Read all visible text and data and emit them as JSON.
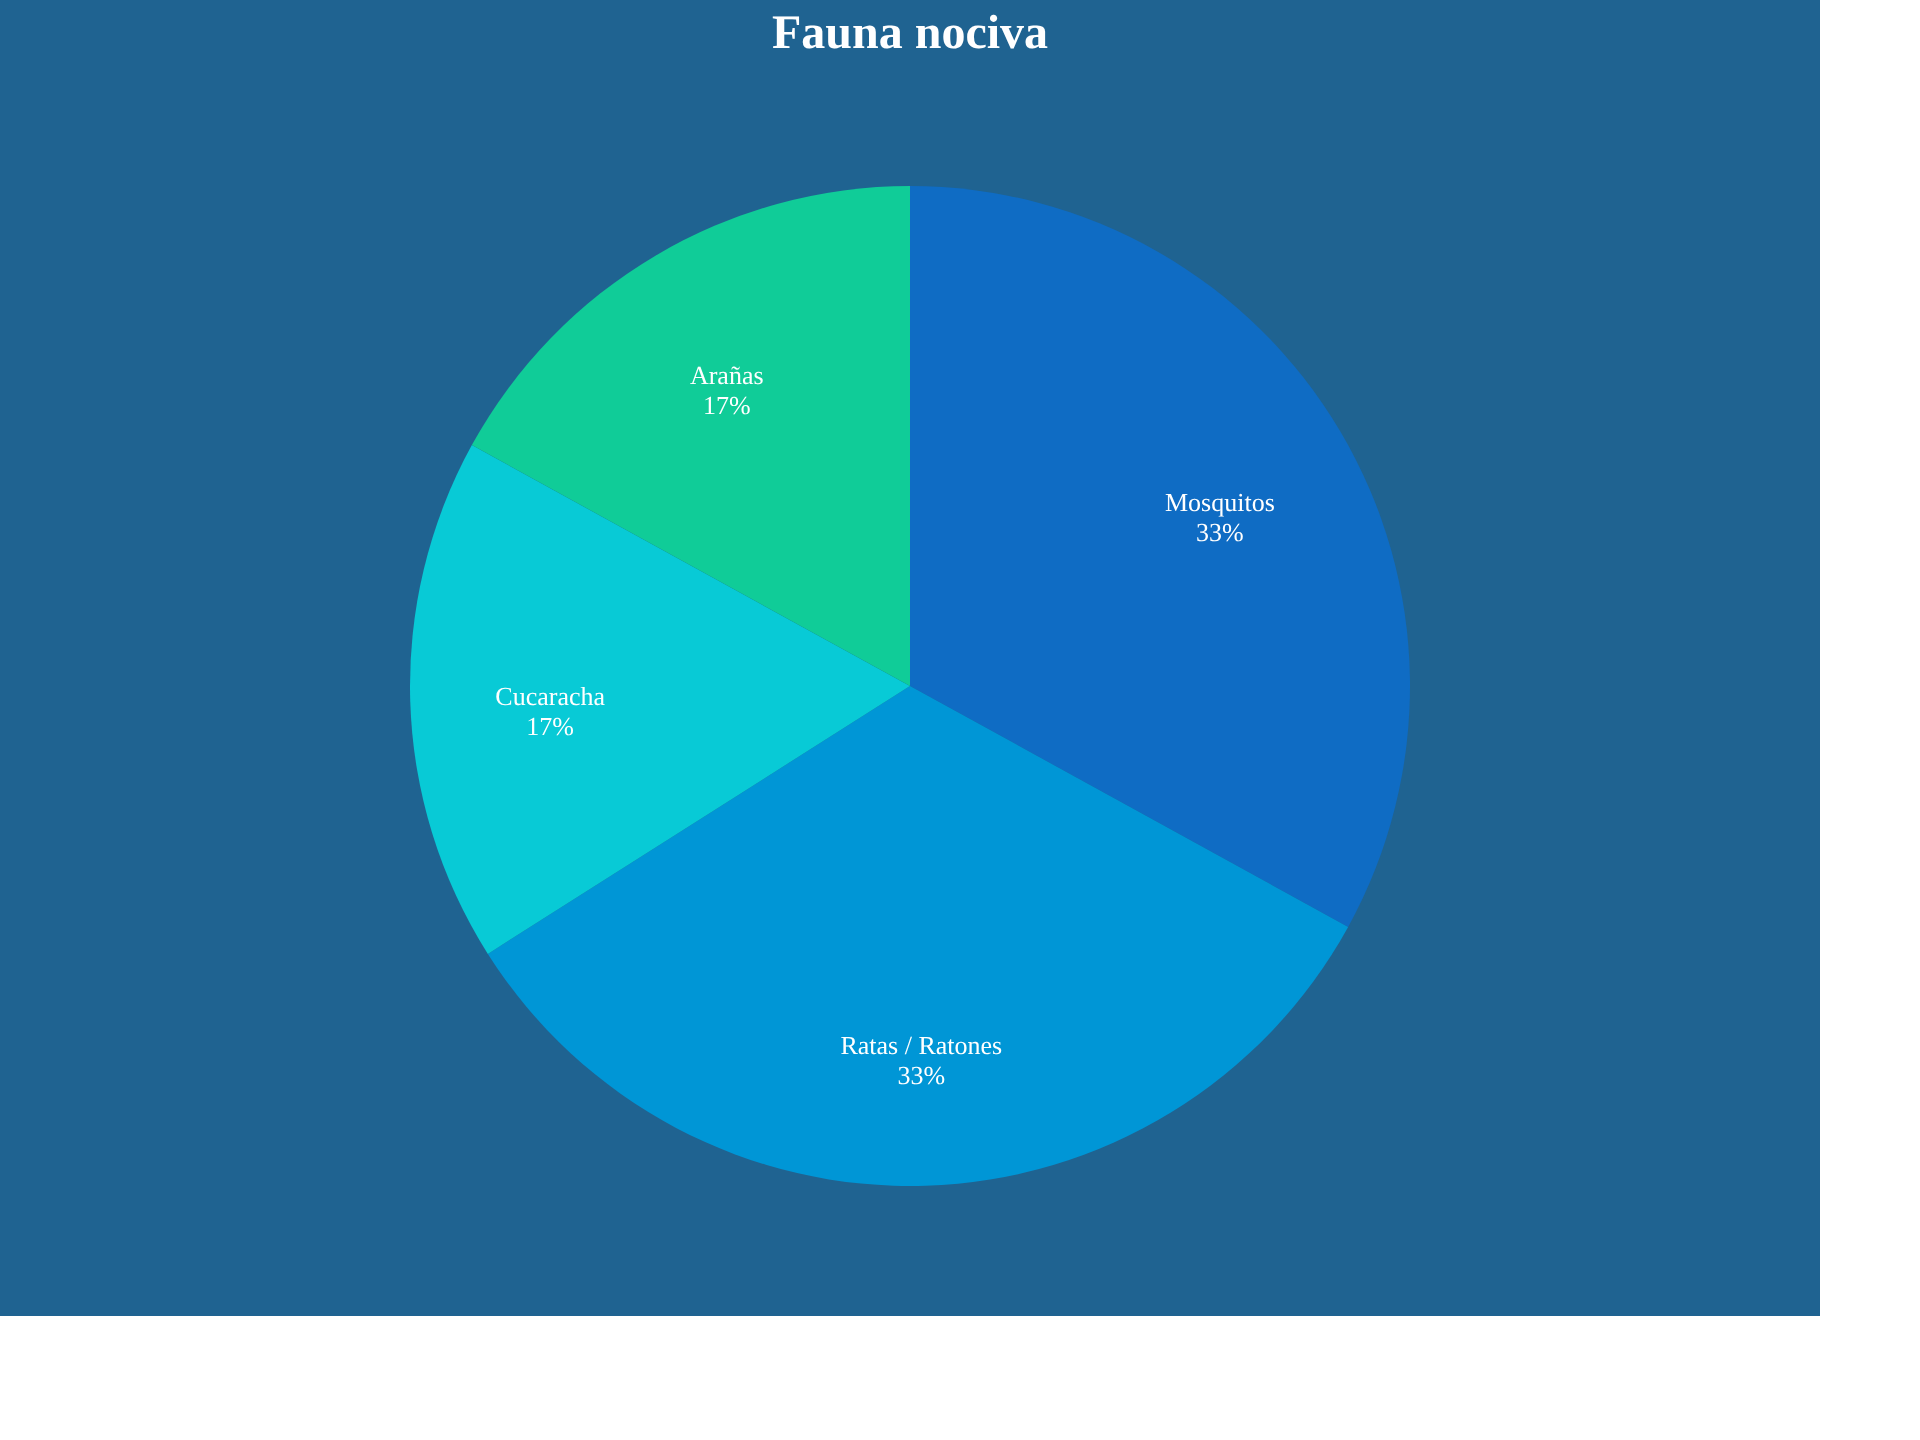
{
  "chart_data": {
    "type": "pie",
    "title": "Fauna nociva",
    "categories": [
      "Mosquitos",
      "Ratas / Ratones",
      "Cucaracha",
      "Arañas"
    ],
    "values": [
      33,
      33,
      17,
      17
    ],
    "colors": [
      "#0f6cc4",
      "#0096d6",
      "#08cad6",
      "#10cc98"
    ],
    "value_labels": [
      "33%",
      "33%",
      "17%",
      "17%"
    ],
    "legend": false
  }
}
